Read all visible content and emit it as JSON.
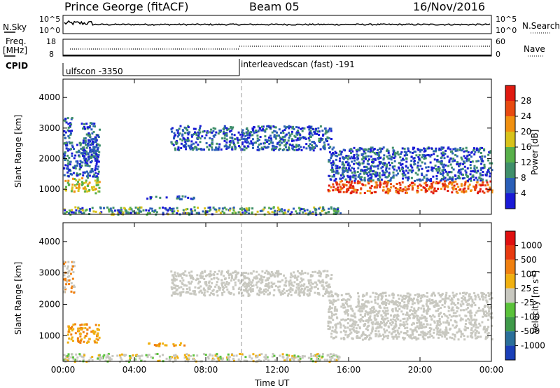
{
  "header": {
    "station": "Prince George (fitACF)",
    "beam": "Beam 05",
    "date": "16/Nov/2016"
  },
  "strips": {
    "nsky_label": "N.Sky",
    "nsky_ticks": [
      "10^5",
      "10^0"
    ],
    "nsearch_label": "N.Search",
    "nsearch_ticks": [
      "10^5",
      "10^0"
    ],
    "freq_label_1": "Freq.",
    "freq_label_2": "[MHz]",
    "freq_ticks": [
      "18",
      "8"
    ],
    "nave_label": "Nave",
    "nave_ticks": [
      "60",
      "0"
    ],
    "cpid_label": "CPID",
    "cpid_segments": [
      "ulfscon -3350",
      "interleavedscan (fast) -191"
    ]
  },
  "chart_data": [
    {
      "type": "heatmap",
      "name": "power",
      "ylabel": "Slant Range [km]",
      "xlabel": "Time UT",
      "x_ticks": [
        "00:00",
        "04:00",
        "08:00",
        "12:00",
        "16:00",
        "20:00",
        "00:00"
      ],
      "xlim": [
        0,
        24
      ],
      "y_ticks": [
        1000,
        2000,
        3000,
        4000
      ],
      "ylim": [
        180,
        4600
      ],
      "colorbar_label": "Power [dB]",
      "colorbar_ticks": [
        4,
        8,
        12,
        16,
        20,
        24,
        28
      ],
      "colorbar_colors": [
        "#1a1ad6",
        "#2a5fb8",
        "#3f8f6a",
        "#58b04a",
        "#d8c21a",
        "#f09010",
        "#e84a10",
        "#e01a10"
      ],
      "features": [
        {
          "t0": 0.0,
          "t1": 0.5,
          "r0": 2700,
          "r1": 3400
        },
        {
          "t0": 0.0,
          "t1": 2.0,
          "r0": 900,
          "r1": 2600
        },
        {
          "t0": 1.0,
          "t1": 2.0,
          "r0": 1900,
          "r1": 3200
        },
        {
          "t0": 4.5,
          "t1": 7.3,
          "r0": 700,
          "r1": 800
        },
        {
          "t0": 6.0,
          "t1": 15.0,
          "r0": 2300,
          "r1": 3100
        },
        {
          "t0": 14.8,
          "t1": 24.0,
          "r0": 900,
          "r1": 2400
        },
        {
          "t0": 0.0,
          "t1": 15.5,
          "r0": 200,
          "r1": 450
        }
      ]
    },
    {
      "type": "heatmap",
      "name": "velocity",
      "ylabel": "Slant Range [km]",
      "xlabel": "Time UT",
      "x_ticks": [
        "00:00",
        "04:00",
        "08:00",
        "12:00",
        "16:00",
        "20:00",
        "00:00"
      ],
      "xlim": [
        0,
        24
      ],
      "y_ticks": [
        1000,
        2000,
        3000,
        4000
      ],
      "ylim": [
        180,
        4600
      ],
      "colorbar_label": "Velocity [m s",
      "colorbar_label_sup": "-1",
      "colorbar_label_end": "]",
      "colorbar_ticks": [
        "1000",
        "500",
        "100",
        "25",
        "-25",
        "-100",
        "-500",
        "-1000"
      ],
      "colorbar_colors": [
        "#1a3fb8",
        "#2a6f9a",
        "#3f9a4a",
        "#5ac23a",
        "#c8c8c0",
        "#f0b010",
        "#f08010",
        "#e83a10",
        "#e01010"
      ],
      "features": [
        {
          "t0": 0.0,
          "t1": 0.6,
          "r0": 2400,
          "r1": 3400
        },
        {
          "t0": 0.2,
          "t1": 2.0,
          "r0": 800,
          "r1": 1400
        },
        {
          "t0": 4.5,
          "t1": 6.8,
          "r0": 700,
          "r1": 800
        },
        {
          "t0": 6.0,
          "t1": 15.0,
          "r0": 2300,
          "r1": 3100
        },
        {
          "t0": 14.8,
          "t1": 24.0,
          "r0": 900,
          "r1": 2400
        },
        {
          "t0": 0.0,
          "t1": 15.5,
          "r0": 200,
          "r1": 450
        }
      ]
    }
  ]
}
